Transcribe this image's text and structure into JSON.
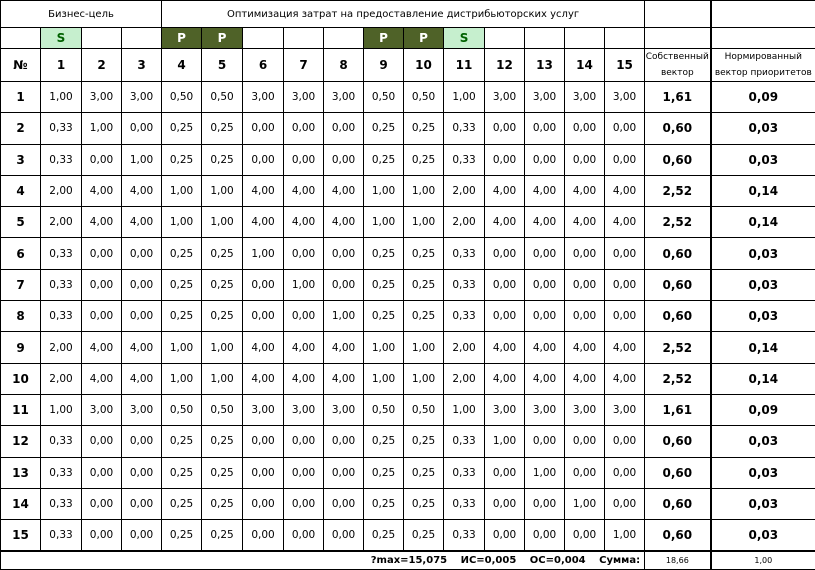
{
  "header": {
    "group_left": "Бизнес-цель",
    "group_right": "Оптимизация затрат на предоставление дистрибьюторских услуг"
  },
  "markers": [
    "S",
    "",
    "",
    "P",
    "P",
    "",
    "",
    "",
    "P",
    "P",
    "S",
    "",
    "",
    "",
    ""
  ],
  "colors": {
    "S_bg": "#c6efce",
    "S_fg": "#006100",
    "P_bg": "#4f6228",
    "P_fg": "#ffffff"
  },
  "columns": {
    "num": "№",
    "items": [
      "1",
      "2",
      "3",
      "4",
      "5",
      "6",
      "7",
      "8",
      "9",
      "10",
      "11",
      "12",
      "13",
      "14",
      "15"
    ],
    "eigen": "Собственный вектор",
    "norm": "Нормированный вектор приоритетов"
  },
  "rows": [
    {
      "n": "1",
      "v": [
        "1,00",
        "3,00",
        "3,00",
        "0,50",
        "0,50",
        "3,00",
        "3,00",
        "3,00",
        "0,50",
        "0,50",
        "1,00",
        "3,00",
        "3,00",
        "3,00",
        "3,00"
      ],
      "eigen": "1,61",
      "norm": "0,09"
    },
    {
      "n": "2",
      "v": [
        "0,33",
        "1,00",
        "0,00",
        "0,25",
        "0,25",
        "0,00",
        "0,00",
        "0,00",
        "0,25",
        "0,25",
        "0,33",
        "0,00",
        "0,00",
        "0,00",
        "0,00"
      ],
      "eigen": "0,60",
      "norm": "0,03"
    },
    {
      "n": "3",
      "v": [
        "0,33",
        "0,00",
        "1,00",
        "0,25",
        "0,25",
        "0,00",
        "0,00",
        "0,00",
        "0,25",
        "0,25",
        "0,33",
        "0,00",
        "0,00",
        "0,00",
        "0,00"
      ],
      "eigen": "0,60",
      "norm": "0,03"
    },
    {
      "n": "4",
      "v": [
        "2,00",
        "4,00",
        "4,00",
        "1,00",
        "1,00",
        "4,00",
        "4,00",
        "4,00",
        "1,00",
        "1,00",
        "2,00",
        "4,00",
        "4,00",
        "4,00",
        "4,00"
      ],
      "eigen": "2,52",
      "norm": "0,14"
    },
    {
      "n": "5",
      "v": [
        "2,00",
        "4,00",
        "4,00",
        "1,00",
        "1,00",
        "4,00",
        "4,00",
        "4,00",
        "1,00",
        "1,00",
        "2,00",
        "4,00",
        "4,00",
        "4,00",
        "4,00"
      ],
      "eigen": "2,52",
      "norm": "0,14"
    },
    {
      "n": "6",
      "v": [
        "0,33",
        "0,00",
        "0,00",
        "0,25",
        "0,25",
        "1,00",
        "0,00",
        "0,00",
        "0,25",
        "0,25",
        "0,33",
        "0,00",
        "0,00",
        "0,00",
        "0,00"
      ],
      "eigen": "0,60",
      "norm": "0,03"
    },
    {
      "n": "7",
      "v": [
        "0,33",
        "0,00",
        "0,00",
        "0,25",
        "0,25",
        "0,00",
        "1,00",
        "0,00",
        "0,25",
        "0,25",
        "0,33",
        "0,00",
        "0,00",
        "0,00",
        "0,00"
      ],
      "eigen": "0,60",
      "norm": "0,03"
    },
    {
      "n": "8",
      "v": [
        "0,33",
        "0,00",
        "0,00",
        "0,25",
        "0,25",
        "0,00",
        "0,00",
        "1,00",
        "0,25",
        "0,25",
        "0,33",
        "0,00",
        "0,00",
        "0,00",
        "0,00"
      ],
      "eigen": "0,60",
      "norm": "0,03"
    },
    {
      "n": "9",
      "v": [
        "2,00",
        "4,00",
        "4,00",
        "1,00",
        "1,00",
        "4,00",
        "4,00",
        "4,00",
        "1,00",
        "1,00",
        "2,00",
        "4,00",
        "4,00",
        "4,00",
        "4,00"
      ],
      "eigen": "2,52",
      "norm": "0,14"
    },
    {
      "n": "10",
      "v": [
        "2,00",
        "4,00",
        "4,00",
        "1,00",
        "1,00",
        "4,00",
        "4,00",
        "4,00",
        "1,00",
        "1,00",
        "2,00",
        "4,00",
        "4,00",
        "4,00",
        "4,00"
      ],
      "eigen": "2,52",
      "norm": "0,14"
    },
    {
      "n": "11",
      "v": [
        "1,00",
        "3,00",
        "3,00",
        "0,50",
        "0,50",
        "3,00",
        "3,00",
        "3,00",
        "0,50",
        "0,50",
        "1,00",
        "3,00",
        "3,00",
        "3,00",
        "3,00"
      ],
      "eigen": "1,61",
      "norm": "0,09"
    },
    {
      "n": "12",
      "v": [
        "0,33",
        "0,00",
        "0,00",
        "0,25",
        "0,25",
        "0,00",
        "0,00",
        "0,00",
        "0,25",
        "0,25",
        "0,33",
        "1,00",
        "0,00",
        "0,00",
        "0,00"
      ],
      "eigen": "0,60",
      "norm": "0,03"
    },
    {
      "n": "13",
      "v": [
        "0,33",
        "0,00",
        "0,00",
        "0,25",
        "0,25",
        "0,00",
        "0,00",
        "0,00",
        "0,25",
        "0,25",
        "0,33",
        "0,00",
        "1,00",
        "0,00",
        "0,00"
      ],
      "eigen": "0,60",
      "norm": "0,03"
    },
    {
      "n": "14",
      "v": [
        "0,33",
        "0,00",
        "0,00",
        "0,25",
        "0,25",
        "0,00",
        "0,00",
        "0,00",
        "0,25",
        "0,25",
        "0,33",
        "0,00",
        "0,00",
        "1,00",
        "0,00"
      ],
      "eigen": "0,60",
      "norm": "0,03"
    },
    {
      "n": "15",
      "v": [
        "0,33",
        "0,00",
        "0,00",
        "0,25",
        "0,25",
        "0,00",
        "0,00",
        "0,00",
        "0,25",
        "0,25",
        "0,33",
        "0,00",
        "0,00",
        "0,00",
        "1,00"
      ],
      "eigen": "0,60",
      "norm": "0,03"
    }
  ],
  "footer": {
    "summary": "?max=15,075 ИС=0,005 ОС=0,004 Сумма:",
    "eigen_sum": "18,66",
    "norm_sum": "1,00"
  }
}
